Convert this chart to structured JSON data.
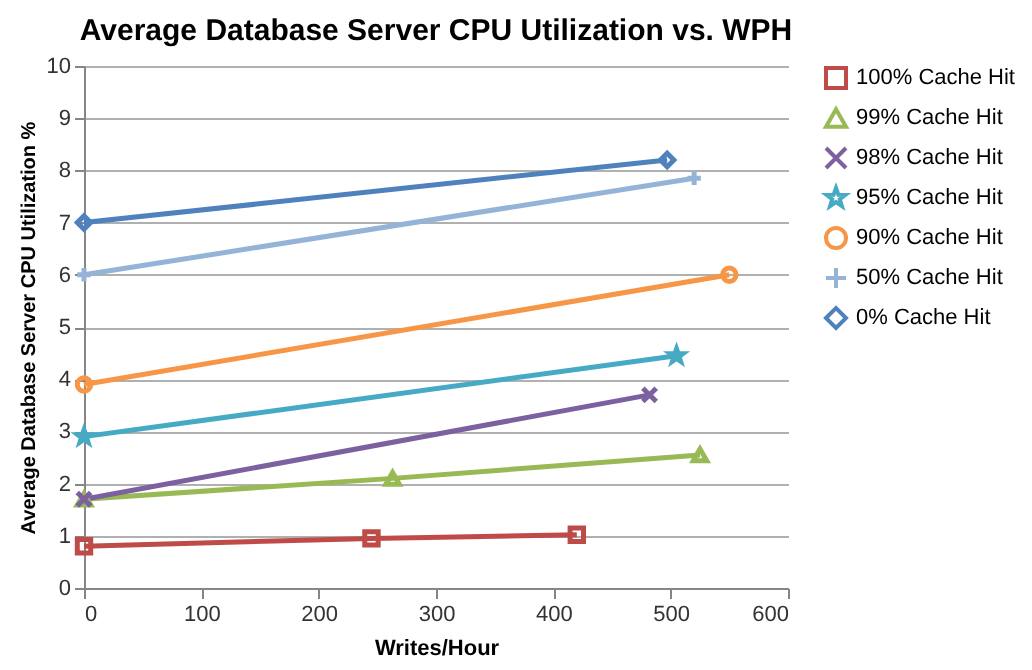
{
  "chart_data": {
    "type": "line",
    "title": "Average Database  Server CPU Utilization  vs.  WPH",
    "xlabel": "Writes/Hour",
    "ylabel": "Average Database  Server CPU Utilization  %",
    "xlim": [
      0,
      600
    ],
    "xticks": [
      0,
      100,
      200,
      300,
      400,
      500,
      600
    ],
    "ylim": [
      0,
      10
    ],
    "yticks": [
      0,
      1,
      2,
      3,
      4,
      5,
      6,
      7,
      8,
      9,
      10
    ],
    "grid": "y",
    "legend": "right",
    "series": [
      {
        "name": "100% Cache Hit",
        "color": "#be4b48",
        "marker": "square",
        "x": [
          0,
          245,
          420
        ],
        "values": [
          0.8,
          0.95,
          1.02
        ]
      },
      {
        "name": "99% Cache Hit",
        "color": "#98b954",
        "marker": "triangle",
        "x": [
          0,
          263,
          525
        ],
        "values": [
          1.7,
          2.1,
          2.55
        ]
      },
      {
        "name": "98% Cache Hit",
        "color": "#7d60a0",
        "marker": "cross",
        "x": [
          0,
          482
        ],
        "values": [
          1.7,
          3.7
        ]
      },
      {
        "name": "95% Cache Hit",
        "color": "#46aac5",
        "marker": "star",
        "x": [
          0,
          505
        ],
        "values": [
          2.9,
          4.45
        ]
      },
      {
        "name": "90% Cache Hit",
        "color": "#f79646",
        "marker": "circle",
        "x": [
          0,
          550
        ],
        "values": [
          3.9,
          6.0
        ]
      },
      {
        "name": "50% Cache Hit",
        "color": "#95b3d7",
        "marker": "plus",
        "x": [
          0,
          520
        ],
        "values": [
          6.0,
          7.85
        ]
      },
      {
        "name": "0% Cache Hit",
        "color": "#4f81bd",
        "marker": "diamond",
        "x": [
          0,
          497
        ],
        "values": [
          7.0,
          8.2
        ]
      }
    ]
  }
}
